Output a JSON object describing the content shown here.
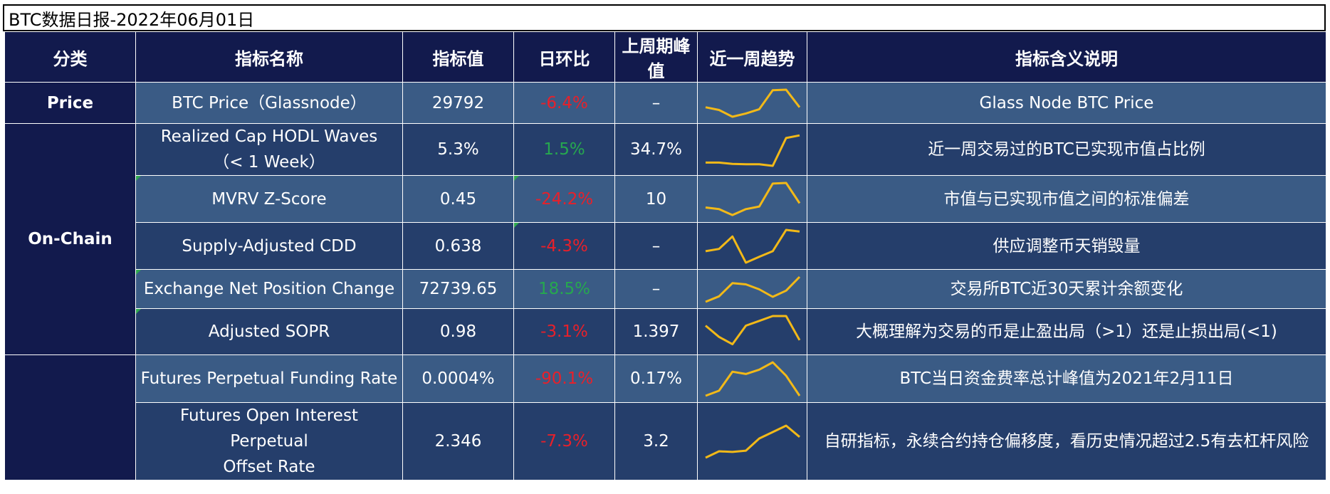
{
  "title": "BTC数据日报-2022年06月01日",
  "headers": [
    "分类",
    "指标名称",
    "指标值",
    "日环比",
    "上周期峰值",
    "近一周趋势",
    "指标含义说明"
  ],
  "categories": [
    {
      "label": "Price",
      "rows": 1
    },
    {
      "label": "On-Chain",
      "rows": 5
    },
    {
      "label": "",
      "rows": 2
    }
  ],
  "rows": [
    {
      "name": "BTC Price（Glassnode）",
      "value": "29792",
      "change": "-6.4%",
      "change_dir": "neg",
      "peak": "–",
      "trend": [
        0.35,
        0.25,
        0.0,
        0.12,
        0.28,
        0.98,
        1.0,
        0.35
      ],
      "desc": "Glass Node BTC Price"
    },
    {
      "name": "Realized Cap HODL Waves\n（< 1 Week）",
      "value": "5.3%",
      "change": "1.5%",
      "change_dir": "pos",
      "peak": "34.7%",
      "trend": [
        0.1,
        0.1,
        0.06,
        0.05,
        0.05,
        0.0,
        0.85,
        0.93
      ],
      "desc": "近一周交易过的BTC已实现市值占比例"
    },
    {
      "name": "MVRV Z-Score",
      "value": "0.45",
      "change": "-24.2%",
      "change_dir": "neg",
      "peak": "10",
      "trend": [
        0.25,
        0.2,
        0.02,
        0.2,
        0.28,
        0.98,
        1.0,
        0.38
      ],
      "desc": "市值与已实现市值之间的标准偏差"
    },
    {
      "name": "Supply-Adjusted CDD",
      "value": "0.638",
      "change": "-4.3%",
      "change_dir": "neg",
      "peak": "–",
      "trend": [
        0.35,
        0.42,
        0.8,
        0.0,
        0.18,
        0.35,
        1.0,
        0.95
      ],
      "desc": "供应调整币天销毁量"
    },
    {
      "name": "Exchange Net Position Change",
      "value": "72739.65",
      "change": "18.5%",
      "change_dir": "pos",
      "peak": "–",
      "trend": [
        0.0,
        0.22,
        0.75,
        0.7,
        0.5,
        0.2,
        0.45,
        1.0
      ],
      "desc": "交易所BTC近30天累计余额变化"
    },
    {
      "name": "Adjusted SOPR",
      "value": "0.98",
      "change": "-3.1%",
      "change_dir": "neg",
      "peak": "1.397",
      "trend": [
        0.7,
        0.35,
        0.12,
        0.7,
        0.85,
        1.0,
        1.0,
        0.25
      ],
      "desc": "大概理解为交易的币是止盈出局（>1）还是止损出局(<1)"
    },
    {
      "name": "Futures Perpetual Funding Rate",
      "value": "0.0004%",
      "change": "-90.1%",
      "change_dir": "neg",
      "peak": "0.17%",
      "trend": [
        0.0,
        0.15,
        0.72,
        0.65,
        0.78,
        1.0,
        0.6,
        0.0
      ],
      "desc": "BTC当日资金费率总计峰值为2021年2月11日"
    },
    {
      "name": "Futures Open Interest Perpetual\nOffset Rate",
      "value": "2.346",
      "change": "-7.3%",
      "change_dir": "neg",
      "peak": "3.2",
      "trend": [
        0.0,
        0.2,
        0.18,
        0.22,
        0.6,
        0.8,
        1.0,
        0.65
      ],
      "desc": "自研指标，永续合约持仓偏移度，看历史情况超过2.5有去杠杆风险"
    }
  ],
  "colors": {
    "header_bg": "#121a4d",
    "row_light": "#3a5b85",
    "row_dark": "#253e6b",
    "negative": "#e8202a",
    "positive": "#26a84f",
    "sparkline": "#f2b918"
  }
}
